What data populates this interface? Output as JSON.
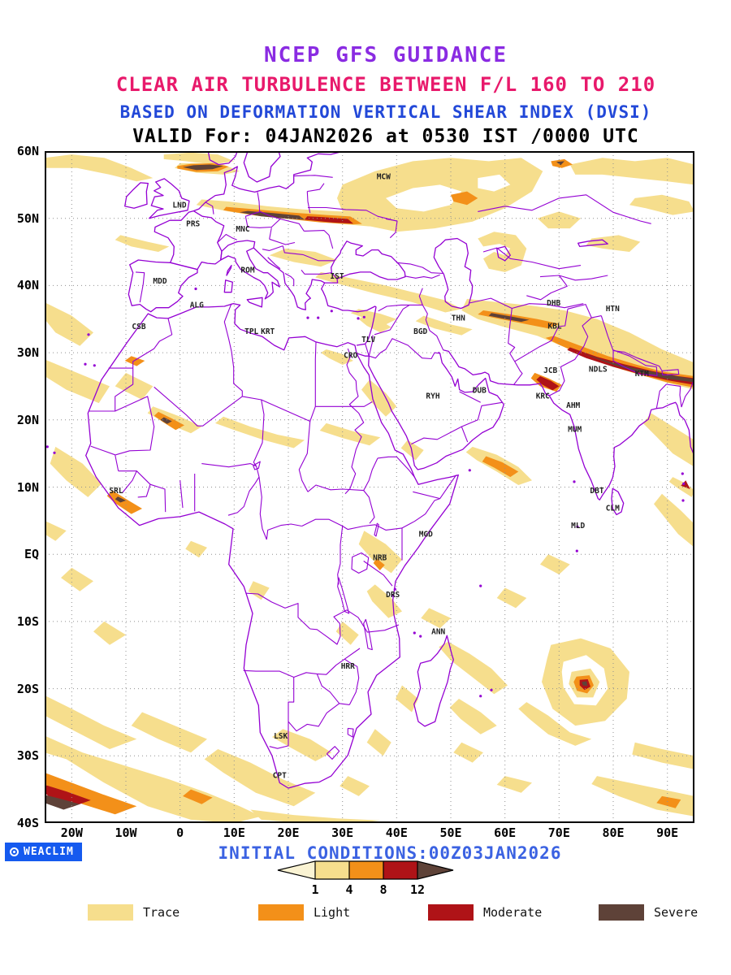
{
  "header": {
    "line1": "NCEP GFS GUIDANCE",
    "line2": "CLEAR AIR TURBULENCE BETWEEN F/L 160 TO 210",
    "line3": "BASED ON DEFORMATION VERTICAL SHEAR INDEX (DVSI)",
    "line4": "VALID For: 04JAN2026 at 0530 IST /0000 UTC"
  },
  "axes": {
    "lat_ticks": [
      {
        "label": "60N",
        "lat": 60
      },
      {
        "label": "50N",
        "lat": 50
      },
      {
        "label": "40N",
        "lat": 40
      },
      {
        "label": "30N",
        "lat": 30
      },
      {
        "label": "20N",
        "lat": 20
      },
      {
        "label": "10N",
        "lat": 10
      },
      {
        "label": "EQ",
        "lat": 0
      },
      {
        "label": "10S",
        "lat": -10
      },
      {
        "label": "20S",
        "lat": -20
      },
      {
        "label": "30S",
        "lat": -30
      },
      {
        "label": "40S",
        "lat": -40
      }
    ],
    "lon_ticks": [
      {
        "label": "20W",
        "lon": -20
      },
      {
        "label": "10W",
        "lon": -10
      },
      {
        "label": "0",
        "lon": 0
      },
      {
        "label": "10E",
        "lon": 10
      },
      {
        "label": "20E",
        "lon": 20
      },
      {
        "label": "30E",
        "lon": 30
      },
      {
        "label": "40E",
        "lon": 40
      },
      {
        "label": "50E",
        "lon": 50
      },
      {
        "label": "60E",
        "lon": 60
      },
      {
        "label": "70E",
        "lon": 70
      },
      {
        "label": "80E",
        "lon": 80
      },
      {
        "label": "90E",
        "lon": 90
      }
    ]
  },
  "map": {
    "extent": {
      "lon_min": -25,
      "lon_max": 95,
      "lat_min": -40,
      "lat_max": 60
    },
    "cities": [
      {
        "label": "MCW",
        "lon": 37.6,
        "lat": 55.8
      },
      {
        "label": "LND",
        "lon": -0.1,
        "lat": 51.6
      },
      {
        "label": "PRS",
        "lon": 2.4,
        "lat": 48.8
      },
      {
        "label": "MNC",
        "lon": 11.6,
        "lat": 48.0
      },
      {
        "label": "ROM",
        "lon": 12.5,
        "lat": 41.9
      },
      {
        "label": "IST",
        "lon": 29.0,
        "lat": 41.0
      },
      {
        "label": "MDD",
        "lon": -3.7,
        "lat": 40.3
      },
      {
        "label": "ALG",
        "lon": 3.1,
        "lat": 36.7
      },
      {
        "label": "CSB",
        "lon": -7.6,
        "lat": 33.5
      },
      {
        "label": "TPL",
        "lon": 13.2,
        "lat": 32.8
      },
      {
        "label": "KRT",
        "lon": 16.2,
        "lat": 32.8
      },
      {
        "label": "TLV",
        "lon": 34.8,
        "lat": 31.6
      },
      {
        "label": "CRO",
        "lon": 31.5,
        "lat": 29.2
      },
      {
        "label": "BGD",
        "lon": 44.4,
        "lat": 32.8
      },
      {
        "label": "THN",
        "lon": 51.4,
        "lat": 34.8
      },
      {
        "label": "DHB",
        "lon": 69.0,
        "lat": 37.0
      },
      {
        "label": "HTN",
        "lon": 79.9,
        "lat": 36.2
      },
      {
        "label": "KBL",
        "lon": 69.2,
        "lat": 33.6
      },
      {
        "label": "JCB",
        "lon": 68.4,
        "lat": 27.0
      },
      {
        "label": "NDLS",
        "lon": 77.2,
        "lat": 27.2
      },
      {
        "label": "KTM",
        "lon": 85.3,
        "lat": 26.5
      },
      {
        "label": "RYH",
        "lon": 46.7,
        "lat": 23.2
      },
      {
        "label": "DUB",
        "lon": 55.3,
        "lat": 24.0
      },
      {
        "label": "KRC",
        "lon": 67.0,
        "lat": 23.2
      },
      {
        "label": "AHM",
        "lon": 72.6,
        "lat": 21.8
      },
      {
        "label": "MUM",
        "lon": 72.9,
        "lat": 18.2
      },
      {
        "label": "DBT",
        "lon": 77.0,
        "lat": 9.1
      },
      {
        "label": "CLM",
        "lon": 79.9,
        "lat": 6.5
      },
      {
        "label": "MLD",
        "lon": 73.5,
        "lat": 3.9
      },
      {
        "label": "SRL",
        "lon": -11.8,
        "lat": 9.1
      },
      {
        "label": "MGD",
        "lon": 45.4,
        "lat": 2.6
      },
      {
        "label": "NRB",
        "lon": 36.9,
        "lat": -0.9
      },
      {
        "label": "DRS",
        "lon": 39.3,
        "lat": -6.4
      },
      {
        "label": "ANN",
        "lon": 47.7,
        "lat": -11.9
      },
      {
        "label": "HRR",
        "lon": 31.0,
        "lat": -17.0
      },
      {
        "label": "LSK",
        "lon": 18.6,
        "lat": -27.4
      },
      {
        "label": "CPT",
        "lon": 18.4,
        "lat": -33.3
      }
    ]
  },
  "footer": {
    "logo_text": "WEACLIM",
    "initial_conditions": "INITIAL CONDITIONS:00Z03JAN2026",
    "scale": {
      "labels": [
        "1",
        "4",
        "8",
        "12"
      ]
    },
    "legend": [
      {
        "label": "Trace",
        "level": "trace"
      },
      {
        "label": "Light",
        "level": "light"
      },
      {
        "label": "Moderate",
        "level": "moderate"
      },
      {
        "label": "Severe",
        "level": "severe"
      }
    ]
  },
  "colors": {
    "title_model": "#8A2BE2",
    "title_product": "#E8196B",
    "title_basis": "#2248D8",
    "title_valid": "#000000",
    "map_outline": "#9400D3",
    "grid": "#909090",
    "frame": "#000000",
    "city_label": "#222222",
    "trace": "#F6DE8D",
    "light": "#F39019",
    "moderate": "#AF1317",
    "severe": "#5E4238",
    "scale_under": "#FAF3D3",
    "initial_conditions": "#3B62E2",
    "logo_bg": "#155AEF",
    "logo_text": "#FFFFFF"
  }
}
